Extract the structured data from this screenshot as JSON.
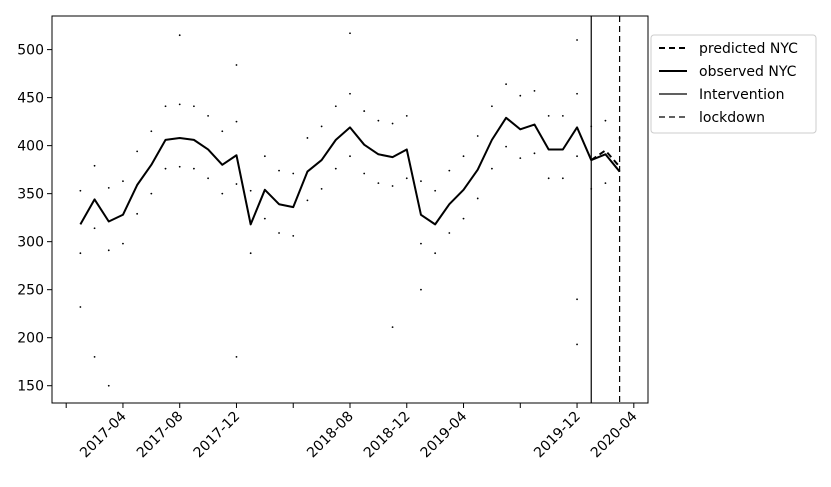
{
  "chart_data": {
    "type": "line",
    "x": [
      "2017-01",
      "2017-02",
      "2017-03",
      "2017-04",
      "2017-05",
      "2017-06",
      "2017-07",
      "2017-08",
      "2017-09",
      "2017-10",
      "2017-11",
      "2017-12",
      "2018-01",
      "2018-02",
      "2018-03",
      "2018-04",
      "2018-05",
      "2018-06",
      "2018-07",
      "2018-08",
      "2018-09",
      "2018-10",
      "2018-11",
      "2018-12",
      "2019-01",
      "2019-02",
      "2019-03",
      "2019-04",
      "2019-05",
      "2019-06",
      "2019-07",
      "2019-08",
      "2019-09",
      "2019-10",
      "2019-11",
      "2019-12",
      "2020-01",
      "2020-02",
      "2020-03"
    ],
    "series": [
      {
        "name": "predicted NYC",
        "color": "#000000",
        "style": "dashed",
        "width": 2,
        "values": [
          null,
          null,
          null,
          null,
          null,
          null,
          null,
          null,
          null,
          null,
          null,
          null,
          null,
          null,
          null,
          null,
          null,
          null,
          null,
          null,
          null,
          null,
          null,
          null,
          null,
          null,
          null,
          null,
          null,
          null,
          null,
          null,
          null,
          null,
          null,
          null,
          385,
          395,
          378
        ]
      },
      {
        "name": "observed NYC",
        "color": "#000000",
        "style": "solid",
        "width": 2,
        "values": [
          318,
          344,
          321,
          328,
          359,
          380,
          406,
          408,
          406,
          396,
          380,
          390,
          318,
          354,
          339,
          336,
          373,
          385,
          406,
          419,
          401,
          391,
          388,
          396,
          328,
          318,
          339,
          354,
          375,
          406,
          429,
          417,
          422,
          396,
          396,
          419,
          385,
          391,
          373
        ]
      }
    ],
    "vlines": [
      {
        "name": "Intervention",
        "x": "2020-01",
        "color": "#000000",
        "style": "solid"
      },
      {
        "name": "lockdown",
        "x": "2020-03",
        "color": "#000000",
        "style": "dashed"
      }
    ],
    "scatter": {
      "color": "#000000",
      "x": [
        "2017-01",
        "2017-01",
        "2017-02",
        "2017-02",
        "2017-03",
        "2017-03",
        "2017-04",
        "2017-04",
        "2017-05",
        "2017-05",
        "2017-06",
        "2017-06",
        "2017-07",
        "2017-07",
        "2017-08",
        "2017-08",
        "2017-09",
        "2017-09",
        "2017-10",
        "2017-10",
        "2017-11",
        "2017-11",
        "2017-12",
        "2017-12",
        "2018-01",
        "2018-01",
        "2018-02",
        "2018-02",
        "2018-03",
        "2018-03",
        "2018-04",
        "2018-04",
        "2018-05",
        "2018-05",
        "2018-06",
        "2018-06",
        "2018-07",
        "2018-07",
        "2018-08",
        "2018-08",
        "2018-09",
        "2018-09",
        "2018-10",
        "2018-10",
        "2018-11",
        "2018-11",
        "2018-12",
        "2018-12",
        "2019-01",
        "2019-01",
        "2019-02",
        "2019-02",
        "2019-03",
        "2019-03",
        "2019-04",
        "2019-04",
        "2019-05",
        "2019-05",
        "2019-06",
        "2019-06",
        "2019-07",
        "2019-07",
        "2019-08",
        "2019-08",
        "2019-09",
        "2019-09",
        "2019-10",
        "2019-10",
        "2019-11",
        "2019-11",
        "2019-12",
        "2019-12",
        "2020-01",
        "2020-01",
        "2020-02",
        "2020-02",
        "2020-03",
        "2020-03",
        "2017-03",
        "2017-02",
        "2017-08",
        "2017-12",
        "2017-12",
        "2018-08",
        "2018-11",
        "2019-12",
        "2019-12",
        "2019-12",
        "2017-01",
        "2019-01"
      ],
      "values": [
        353,
        288,
        379,
        314,
        356,
        291,
        363,
        298,
        394,
        329,
        415,
        350,
        441,
        376,
        443,
        378,
        441,
        376,
        431,
        366,
        415,
        350,
        425,
        360,
        353,
        288,
        389,
        324,
        374,
        309,
        371,
        306,
        408,
        343,
        420,
        355,
        441,
        376,
        454,
        389,
        436,
        371,
        426,
        361,
        423,
        358,
        431,
        366,
        363,
        298,
        353,
        288,
        374,
        309,
        389,
        324,
        410,
        345,
        441,
        376,
        464,
        399,
        452,
        387,
        457,
        392,
        431,
        366,
        431,
        366,
        454,
        389,
        420,
        355,
        426,
        361,
        408,
        343,
        150,
        180,
        515,
        180,
        484,
        517,
        211,
        510,
        193,
        240,
        232,
        250
      ]
    },
    "xlim": [
      "2016-11",
      "2020-05"
    ],
    "xticks": [
      {
        "value": "2016-12",
        "label": null
      },
      "2017-04",
      "2017-08",
      "2017-12",
      {
        "value": "2018-04",
        "label": null
      },
      "2018-08",
      "2018-12",
      "2019-04",
      {
        "value": "2019-08",
        "label": null
      },
      "2019-12",
      "2020-04"
    ],
    "ylim": [
      132,
      535
    ],
    "yticks": [
      150,
      200,
      250,
      300,
      350,
      400,
      450,
      500
    ],
    "legend": "upper right"
  }
}
